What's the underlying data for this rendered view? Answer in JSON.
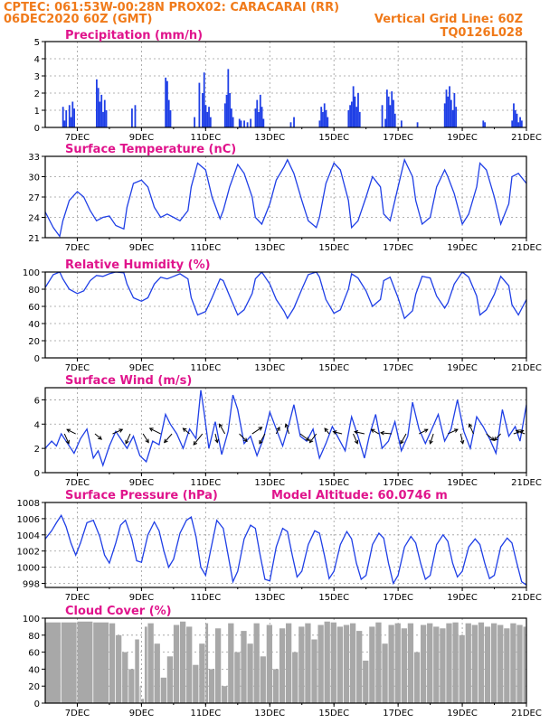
{
  "header": {
    "left_line1": "CPTEC:   061:53W-00:28N   PROX02: CARACARAI (RR)",
    "left_line2": "06DEC2020 60Z (GMT)",
    "right_line1": "Vertical Grid Line: 60Z",
    "right_line2": "TQ0126L028"
  },
  "colors": {
    "header": "#f07a1a",
    "title": "#e0148c",
    "series": "#1f3fe6",
    "cloud": "#a8a8a8"
  },
  "x_axis": {
    "start_day": 6,
    "end_day": 21,
    "ticks": [
      7,
      9,
      11,
      13,
      15,
      17,
      19,
      21
    ],
    "tick_labels": [
      "7DEC",
      "9DEC",
      "11DEC",
      "13DEC",
      "15DEC",
      "17DEC",
      "19DEC",
      "21DEC"
    ],
    "grid": true
  },
  "chart_data": [
    {
      "id": "precip",
      "type": "bar",
      "title": "Precipitation (mm/h)",
      "annotation": "",
      "ylim": [
        0,
        5
      ],
      "yticks": [
        0,
        1,
        2,
        3,
        4,
        5
      ],
      "x": [
        6.55,
        6.6,
        6.65,
        6.75,
        6.8,
        6.85,
        6.9,
        7.6,
        7.65,
        7.7,
        7.75,
        7.8,
        7.85,
        7.9,
        8.7,
        8.8,
        9.75,
        9.8,
        9.85,
        9.9,
        10.65,
        10.8,
        10.9,
        10.95,
        11.0,
        11.05,
        11.1,
        11.15,
        11.6,
        11.65,
        11.7,
        11.75,
        11.8,
        11.85,
        12.05,
        12.1,
        12.2,
        12.3,
        12.4,
        12.55,
        12.6,
        12.65,
        12.7,
        12.75,
        12.8,
        13.65,
        13.75,
        14.55,
        14.6,
        14.65,
        14.7,
        14.75,
        14.8,
        15.45,
        15.5,
        15.55,
        15.6,
        15.65,
        15.7,
        15.75,
        15.8,
        16.5,
        16.6,
        16.65,
        16.7,
        16.75,
        16.8,
        16.85,
        16.9,
        17.1,
        17.6,
        18.45,
        18.5,
        18.55,
        18.6,
        18.65,
        18.7,
        18.75,
        18.8,
        19.65,
        19.7,
        20.55,
        20.6,
        20.65,
        20.7,
        20.75,
        20.8,
        20.85,
        21.05,
        21.15
      ],
      "values": [
        1.2,
        0.4,
        1.0,
        1.3,
        0.6,
        1.5,
        1.1,
        2.8,
        2.3,
        1.5,
        1.9,
        0.9,
        1.6,
        1.0,
        1.1,
        1.3,
        2.9,
        2.7,
        1.6,
        1.0,
        0.6,
        2.6,
        2.0,
        3.2,
        1.3,
        0.9,
        1.2,
        0.6,
        1.4,
        1.9,
        3.4,
        2.0,
        1.1,
        0.6,
        0.5,
        0.4,
        0.4,
        0.3,
        0.5,
        1.1,
        1.6,
        0.9,
        1.9,
        1.2,
        0.5,
        0.3,
        0.6,
        0.4,
        1.2,
        0.9,
        1.4,
        1.0,
        0.6,
        1.0,
        1.3,
        1.5,
        2.4,
        1.8,
        1.2,
        2.0,
        0.9,
        1.3,
        0.5,
        2.2,
        1.8,
        1.3,
        2.1,
        1.6,
        0.8,
        0.4,
        0.3,
        1.4,
        2.2,
        1.8,
        2.4,
        1.6,
        1.0,
        2.0,
        1.2,
        0.4,
        0.3,
        0.4,
        1.4,
        1.0,
        0.8,
        0.3,
        0.6,
        0.4,
        0.6,
        0.4
      ]
    },
    {
      "id": "temp",
      "type": "line",
      "title": "Surface Temperature (nC)",
      "annotation": "",
      "ylim": [
        21,
        33
      ],
      "yticks": [
        21,
        24,
        27,
        30,
        33
      ],
      "x": [
        6.0,
        6.25,
        6.45,
        6.55,
        6.75,
        7.0,
        7.2,
        7.4,
        7.6,
        7.8,
        8.0,
        8.2,
        8.45,
        8.55,
        8.75,
        9.0,
        9.2,
        9.4,
        9.6,
        9.8,
        10.0,
        10.2,
        10.45,
        10.55,
        10.75,
        11.0,
        11.2,
        11.45,
        11.55,
        11.75,
        12.0,
        12.2,
        12.45,
        12.55,
        12.75,
        13.0,
        13.2,
        13.45,
        13.55,
        13.75,
        14.0,
        14.2,
        14.45,
        14.55,
        14.75,
        15.0,
        15.2,
        15.45,
        15.55,
        15.75,
        16.0,
        16.2,
        16.45,
        16.55,
        16.75,
        17.0,
        17.2,
        17.45,
        17.55,
        17.75,
        18.0,
        18.2,
        18.45,
        18.55,
        18.75,
        19.0,
        19.2,
        19.45,
        19.55,
        19.75,
        20.0,
        20.2,
        20.45,
        20.55,
        20.75,
        21.0
      ],
      "values": [
        24.8,
        22.5,
        21.2,
        23.5,
        26.5,
        27.8,
        27.0,
        25.0,
        23.5,
        24.0,
        24.2,
        22.8,
        22.3,
        25.5,
        29.0,
        29.5,
        28.5,
        25.5,
        24.0,
        24.5,
        24.0,
        23.5,
        25.0,
        28.5,
        32.0,
        31.0,
        27.0,
        23.8,
        25.0,
        28.5,
        31.8,
        30.5,
        27.0,
        24.0,
        23.0,
        26.0,
        29.5,
        31.5,
        32.5,
        30.5,
        26.5,
        23.5,
        22.5,
        24.0,
        29.0,
        32.0,
        31.0,
        26.5,
        22.5,
        23.5,
        27.0,
        30.0,
        28.5,
        24.5,
        23.5,
        28.5,
        32.5,
        30.0,
        26.5,
        23.0,
        24.0,
        28.5,
        31.0,
        30.0,
        27.5,
        23.0,
        24.5,
        28.5,
        32.0,
        31.0,
        27.0,
        23.0,
        26.0,
        30.0,
        30.5,
        29.0
      ]
    },
    {
      "id": "rh",
      "type": "line",
      "title": "Relative Humidity (%)",
      "annotation": "",
      "ylim": [
        0,
        100
      ],
      "yticks": [
        0,
        20,
        40,
        60,
        80,
        100
      ],
      "x": [
        6.0,
        6.25,
        6.45,
        6.55,
        6.75,
        7.0,
        7.2,
        7.4,
        7.6,
        7.8,
        8.0,
        8.2,
        8.45,
        8.55,
        8.75,
        9.0,
        9.2,
        9.4,
        9.6,
        9.8,
        10.0,
        10.2,
        10.45,
        10.55,
        10.75,
        11.0,
        11.2,
        11.45,
        11.55,
        11.75,
        12.0,
        12.2,
        12.45,
        12.55,
        12.75,
        13.0,
        13.2,
        13.45,
        13.55,
        13.75,
        14.0,
        14.2,
        14.45,
        14.55,
        14.75,
        15.0,
        15.2,
        15.45,
        15.55,
        15.75,
        16.0,
        16.2,
        16.45,
        16.55,
        16.75,
        17.0,
        17.2,
        17.45,
        17.55,
        17.75,
        18.0,
        18.2,
        18.45,
        18.55,
        18.75,
        19.0,
        19.2,
        19.45,
        19.55,
        19.75,
        20.0,
        20.2,
        20.45,
        20.55,
        20.75,
        21.0
      ],
      "values": [
        82,
        97,
        100,
        92,
        80,
        75,
        78,
        90,
        96,
        95,
        98,
        100,
        99,
        86,
        70,
        66,
        70,
        86,
        94,
        92,
        95,
        98,
        92,
        70,
        50,
        54,
        70,
        92,
        90,
        72,
        50,
        56,
        75,
        92,
        100,
        86,
        68,
        54,
        46,
        58,
        80,
        97,
        100,
        94,
        68,
        52,
        56,
        80,
        98,
        93,
        78,
        60,
        68,
        90,
        94,
        70,
        46,
        55,
        74,
        95,
        93,
        72,
        58,
        64,
        86,
        100,
        94,
        72,
        50,
        56,
        74,
        95,
        84,
        62,
        50,
        68
      ]
    },
    {
      "id": "wind",
      "type": "line",
      "title": "Surface Wind (m/s)",
      "annotation": "",
      "ylim": [
        0,
        7
      ],
      "yticks": [
        0,
        2,
        4,
        6
      ],
      "x": [
        6.0,
        6.2,
        6.35,
        6.5,
        6.7,
        6.9,
        7.1,
        7.3,
        7.5,
        7.65,
        7.8,
        8.0,
        8.2,
        8.4,
        8.55,
        8.75,
        8.95,
        9.15,
        9.35,
        9.55,
        9.75,
        9.9,
        10.1,
        10.3,
        10.5,
        10.7,
        10.85,
        10.95,
        11.1,
        11.3,
        11.5,
        11.7,
        11.85,
        12.0,
        12.2,
        12.4,
        12.6,
        12.8,
        13.0,
        13.2,
        13.4,
        13.6,
        13.75,
        13.95,
        14.15,
        14.35,
        14.55,
        14.75,
        14.95,
        15.15,
        15.35,
        15.55,
        15.75,
        15.95,
        16.1,
        16.3,
        16.5,
        16.7,
        16.9,
        17.1,
        17.3,
        17.45,
        17.65,
        17.85,
        18.05,
        18.25,
        18.45,
        18.65,
        18.85,
        19.05,
        19.25,
        19.45,
        19.65,
        19.85,
        20.05,
        20.25,
        20.45,
        20.65,
        20.8,
        21.0
      ],
      "values": [
        2.0,
        2.6,
        2.2,
        3.2,
        2.4,
        1.6,
        2.8,
        3.6,
        1.2,
        1.8,
        0.6,
        2.2,
        3.4,
        2.6,
        2.0,
        3.0,
        1.4,
        0.9,
        2.6,
        2.3,
        4.8,
        4.0,
        3.2,
        2.0,
        3.6,
        2.8,
        6.8,
        5.0,
        2.0,
        4.2,
        1.5,
        3.4,
        6.4,
        5.2,
        2.4,
        3.0,
        1.4,
        2.8,
        5.0,
        3.6,
        2.2,
        4.0,
        5.6,
        3.0,
        2.6,
        3.6,
        1.2,
        2.4,
        3.8,
        2.8,
        1.8,
        4.6,
        3.0,
        1.2,
        3.0,
        4.8,
        2.0,
        2.6,
        4.2,
        1.8,
        3.0,
        5.8,
        3.6,
        2.4,
        3.6,
        4.8,
        2.6,
        3.6,
        6.0,
        3.4,
        2.0,
        4.6,
        3.8,
        2.8,
        1.6,
        5.2,
        3.0,
        3.8,
        2.6,
        5.6
      ]
    },
    {
      "id": "pressure",
      "type": "line",
      "title": "Surface Pressure (hPa)",
      "annotation": "Model Altitude: 60.0746 m",
      "ylim": [
        997.5,
        1008
      ],
      "yticks": [
        998,
        1000,
        1002,
        1004,
        1006,
        1008
      ],
      "x": [
        6.0,
        6.2,
        6.35,
        6.5,
        6.65,
        6.8,
        6.95,
        7.1,
        7.3,
        7.5,
        7.7,
        7.85,
        8.0,
        8.2,
        8.35,
        8.5,
        8.7,
        8.85,
        9.0,
        9.2,
        9.4,
        9.55,
        9.7,
        9.85,
        10.0,
        10.2,
        10.4,
        10.55,
        10.7,
        10.85,
        11.0,
        11.15,
        11.35,
        11.55,
        11.7,
        11.85,
        12.0,
        12.2,
        12.4,
        12.55,
        12.7,
        12.85,
        13.0,
        13.2,
        13.4,
        13.55,
        13.7,
        13.85,
        14.0,
        14.2,
        14.4,
        14.55,
        14.7,
        14.85,
        15.0,
        15.2,
        15.4,
        15.55,
        15.7,
        15.85,
        16.0,
        16.2,
        16.4,
        16.55,
        16.7,
        16.85,
        17.0,
        17.2,
        17.4,
        17.55,
        17.7,
        17.85,
        18.0,
        18.2,
        18.4,
        18.55,
        18.7,
        18.85,
        19.0,
        19.2,
        19.4,
        19.55,
        19.7,
        19.85,
        20.0,
        20.2,
        20.4,
        20.55,
        20.7,
        20.85,
        21.0
      ],
      "values": [
        1003.5,
        1004.5,
        1005.5,
        1006.4,
        1005.0,
        1003.0,
        1001.5,
        1003.0,
        1005.5,
        1005.8,
        1003.8,
        1001.5,
        1000.5,
        1003.0,
        1005.2,
        1005.8,
        1003.5,
        1000.8,
        1000.6,
        1004.0,
        1005.6,
        1004.5,
        1002.0,
        1000.0,
        1001.0,
        1004.2,
        1005.8,
        1006.2,
        1003.8,
        1000.0,
        999.0,
        1002.0,
        1005.8,
        1004.8,
        1001.5,
        998.2,
        999.5,
        1003.5,
        1005.2,
        1004.8,
        1001.5,
        998.5,
        998.3,
        1002.5,
        1004.8,
        1004.4,
        1001.5,
        998.8,
        999.5,
        1002.8,
        1004.5,
        1004.2,
        1001.5,
        998.6,
        999.5,
        1002.8,
        1004.4,
        1003.5,
        1000.5,
        998.5,
        999.0,
        1002.8,
        1004.2,
        1003.6,
        1000.5,
        998.0,
        999.0,
        1002.5,
        1003.8,
        1003.0,
        1000.5,
        998.5,
        999.0,
        1002.8,
        1004.0,
        1003.2,
        1000.5,
        998.8,
        999.5,
        1002.5,
        1003.5,
        1002.8,
        1000.5,
        998.6,
        999.0,
        1002.5,
        1003.6,
        1003.0,
        1000.5,
        998.2,
        997.8
      ]
    },
    {
      "id": "cloud",
      "type": "area",
      "title": "Cloud Cover (%)",
      "annotation": "",
      "ylim": [
        0,
        100
      ],
      "yticks": [
        0,
        20,
        40,
        60,
        80,
        100
      ],
      "x": [
        6.0,
        6.5,
        7.0,
        7.5,
        8.0,
        8.2,
        8.4,
        8.6,
        8.8,
        8.95,
        9.0,
        9.1,
        9.2,
        9.4,
        9.6,
        9.8,
        10.0,
        10.2,
        10.4,
        10.6,
        10.8,
        11.0,
        11.1,
        11.3,
        11.5,
        11.7,
        11.9,
        12.1,
        12.3,
        12.5,
        12.7,
        12.9,
        13.1,
        13.3,
        13.5,
        13.7,
        13.9,
        14.1,
        14.3,
        14.5,
        14.7,
        14.9,
        15.1,
        15.3,
        15.5,
        15.7,
        15.9,
        16.1,
        16.3,
        16.5,
        16.7,
        16.9,
        17.1,
        17.3,
        17.5,
        17.7,
        17.9,
        18.1,
        18.3,
        18.5,
        18.7,
        18.9,
        19.1,
        19.3,
        19.5,
        19.7,
        19.9,
        20.1,
        20.3,
        20.5,
        20.7,
        20.9,
        21.0
      ],
      "values": [
        95,
        95,
        96,
        95,
        94,
        80,
        60,
        40,
        75,
        20,
        5,
        90,
        94,
        70,
        30,
        55,
        92,
        96,
        90,
        45,
        70,
        94,
        40,
        88,
        20,
        94,
        60,
        85,
        70,
        94,
        55,
        92,
        40,
        88,
        94,
        60,
        90,
        94,
        75,
        92,
        96,
        95,
        90,
        92,
        94,
        85,
        50,
        90,
        95,
        70,
        92,
        94,
        88,
        94,
        60,
        92,
        94,
        90,
        88,
        94,
        95,
        80,
        94,
        92,
        95,
        90,
        94,
        92,
        88,
        94,
        92,
        90,
        60
      ]
    }
  ],
  "wind_arrows": {
    "x": [
      6.6,
      6.95,
      7.55,
      8.1,
      8.65,
      9.05,
      9.6,
      9.95,
      10.5,
      10.9,
      11.3,
      11.6,
      12.05,
      12.45,
      12.85,
      13.2,
      13.6,
      13.95,
      14.45,
      14.85,
      15.25,
      15.6,
      15.95,
      16.4,
      16.8,
      17.25,
      17.65,
      18.1,
      18.55,
      18.95,
      19.35,
      19.75,
      20.2,
      20.6,
      20.95
    ],
    "u": [
      0.4,
      -0.8,
      0.6,
      0.9,
      -0.4,
      0.5,
      -1.0,
      -0.7,
      -0.6,
      -0.8,
      0.2,
      -0.5,
      0.7,
      0.9,
      -0.5,
      0.3,
      -0.3,
      0.8,
      -0.6,
      -0.4,
      -0.8,
      0.4,
      -0.9,
      -0.7,
      -1.0,
      -0.5,
      0.8,
      -0.3,
      0.9,
      0.2,
      -0.4,
      0.7,
      -0.6,
      0.9,
      -0.8
    ],
    "v": [
      -0.9,
      0.4,
      -0.5,
      0.4,
      -0.9,
      -0.8,
      0.5,
      -0.8,
      0.5,
      -1.0,
      -0.8,
      0.9,
      -0.7,
      0.6,
      -0.9,
      0.6,
      0.9,
      -0.6,
      -0.8,
      0.5,
      0.2,
      -0.9,
      0.2,
      0.4,
      0.1,
      -0.9,
      0.4,
      -0.9,
      0.4,
      -0.9,
      0.9,
      -0.6,
      -0.6,
      0.3,
      0.3
    ]
  }
}
